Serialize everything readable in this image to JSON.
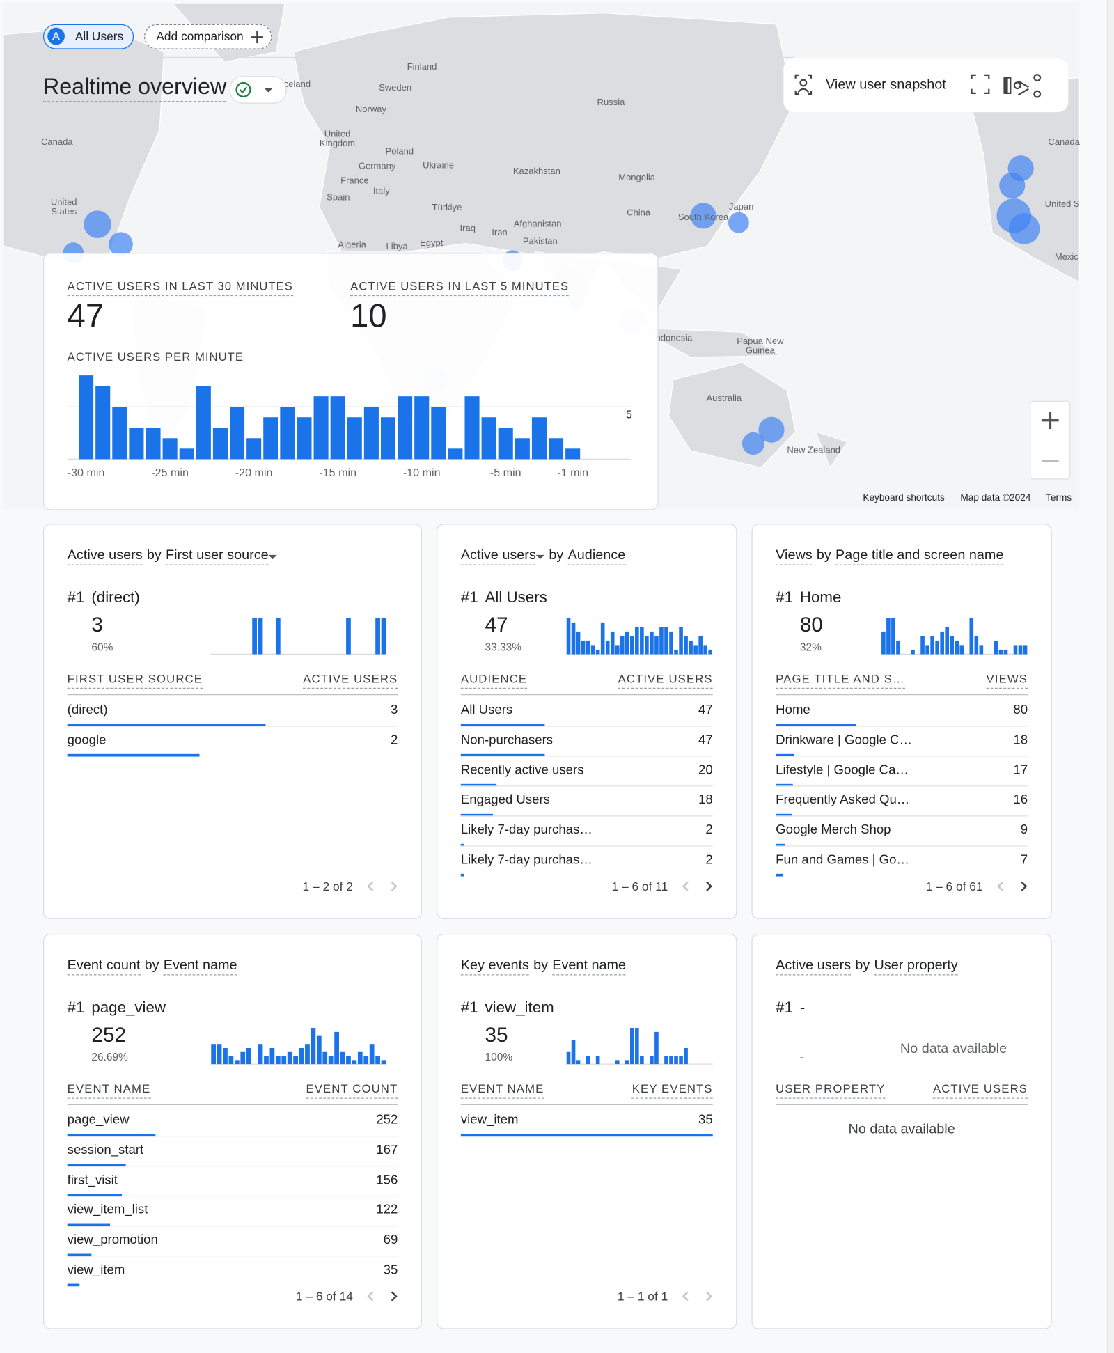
{
  "header": {
    "segment_icon": "A",
    "segment_chip": "All Users",
    "add_comparison": "Add comparison",
    "title": "Realtime overview",
    "snapshot": "View user snapshot"
  },
  "map": {
    "labels": [
      "Finland",
      "Sweden",
      "Norway",
      "Iceland",
      "Russia",
      "United Kingdom",
      "Poland",
      "Germany",
      "Ukraine",
      "France",
      "Kazakhstan",
      "Mongolia",
      "Spain",
      "Italy",
      "Türkiye",
      "China",
      "Japan",
      "South Korea",
      "Iraq",
      "Iran",
      "Afghanistan",
      "Pakistan",
      "Algeria",
      "Libya",
      "Egypt",
      "Canada",
      "United States",
      "Canada",
      "United S",
      "Mexic",
      "ndonesia",
      "Papua New Guinea",
      "Australia",
      "New Zealand"
    ],
    "keyboard_shortcuts": "Keyboard shortcuts",
    "map_data": "Map data ©2024",
    "terms": "Terms"
  },
  "realtime": {
    "metrics": [
      {
        "label": "ACTIVE USERS IN LAST 30 MINUTES",
        "value": 47
      },
      {
        "label": "ACTIVE USERS IN LAST 5 MINUTES",
        "value": 10
      }
    ],
    "chart_data": {
      "type": "bar",
      "title": "ACTIVE USERS PER MINUTE",
      "categories": [
        "-30 min",
        null,
        null,
        null,
        null,
        "-25 min",
        null,
        null,
        null,
        null,
        "-20 min",
        null,
        null,
        null,
        null,
        "-15 min",
        null,
        null,
        null,
        null,
        "-10 min",
        null,
        null,
        null,
        null,
        "-5 min",
        null,
        null,
        null,
        "-1 min"
      ],
      "values": [
        8,
        7,
        5,
        3,
        3,
        2,
        1,
        7,
        3,
        5,
        2,
        4,
        5,
        4,
        6,
        6,
        4,
        5,
        4,
        6,
        6,
        5,
        1,
        6,
        4,
        3,
        2,
        4,
        2,
        1
      ],
      "color": "#1a73e8",
      "ylim": [
        0,
        8
      ],
      "yticks": [
        5
      ],
      "grid": true
    }
  },
  "cards": [
    {
      "title": [
        "Active users",
        "by",
        "First user source"
      ],
      "rank": "#1",
      "top_name": "(direct)",
      "top_value": 3,
      "share": 60,
      "share_label": "60%",
      "spark": [
        0,
        0,
        0,
        0,
        0,
        0,
        0,
        1,
        1,
        0,
        0,
        1,
        0,
        0,
        0,
        0,
        0,
        0,
        0,
        0,
        0,
        0,
        0,
        1,
        0,
        0,
        0,
        0,
        1,
        1
      ],
      "columns": [
        "FIRST USER SOURCE",
        "ACTIVE USERS"
      ],
      "rows": [
        {
          "name": "(direct)",
          "value": 3
        },
        {
          "name": "google",
          "value": 2
        }
      ],
      "pagination": "1 – 2 of 2"
    },
    {
      "title": [
        "Active users",
        "by",
        "Audience"
      ],
      "rank": "#1",
      "top_name": "All Users",
      "top_value": 47,
      "share": 33.33,
      "share_label": "33.33%",
      "spark": [
        8,
        7,
        5,
        3,
        3,
        2,
        1,
        7,
        3,
        5,
        2,
        4,
        5,
        4,
        6,
        6,
        4,
        5,
        4,
        6,
        6,
        5,
        1,
        6,
        4,
        3,
        2,
        4,
        2,
        1
      ],
      "columns": [
        "AUDIENCE",
        "ACTIVE USERS"
      ],
      "rows": [
        {
          "name": "All Users",
          "value": 47
        },
        {
          "name": "Non-purchasers",
          "value": 47
        },
        {
          "name": "Recently active users",
          "value": 20
        },
        {
          "name": "Engaged Users",
          "value": 18
        },
        {
          "name": "Likely 7-day purchas…",
          "value": 2
        },
        {
          "name": "Likely 7-day purchas…",
          "value": 2
        }
      ],
      "pagination": "1 – 6 of 11"
    },
    {
      "title": [
        "Views",
        "by",
        "Page title and screen name"
      ],
      "rank": "#1",
      "top_name": "Home",
      "top_value": 80,
      "share": 32,
      "share_label": "32%",
      "spark": [
        5,
        8,
        8,
        3,
        0,
        0,
        1,
        0,
        4,
        2,
        4,
        3,
        5,
        6,
        4,
        3,
        2,
        0,
        8,
        4,
        2,
        0,
        0,
        3,
        1,
        1,
        0,
        2,
        2,
        2
      ],
      "columns": [
        "PAGE TITLE AND S…",
        "VIEWS"
      ],
      "rows": [
        {
          "name": "Home",
          "value": 80
        },
        {
          "name": "Drinkware | Google C…",
          "value": 18
        },
        {
          "name": "Lifestyle | Google Ca…",
          "value": 17
        },
        {
          "name": "Frequently Asked Qu…",
          "value": 16
        },
        {
          "name": "Google Merch Shop",
          "value": 9
        },
        {
          "name": "Fun and Games | Go…",
          "value": 7
        }
      ],
      "pagination": "1 – 6 of 61"
    },
    {
      "title": [
        "Event count",
        "by",
        "Event name"
      ],
      "rank": "#1",
      "top_name": "page_view",
      "top_value": 252,
      "share": 26.69,
      "share_label": "26.69%",
      "spark": [
        5,
        5,
        4,
        2,
        1,
        3,
        4,
        0,
        5,
        2,
        4,
        2,
        2,
        3,
        2,
        4,
        5,
        9,
        7,
        3,
        2,
        8,
        3,
        2,
        1,
        3,
        2,
        5,
        2,
        1
      ],
      "columns": [
        "EVENT NAME",
        "EVENT COUNT"
      ],
      "rows": [
        {
          "name": "page_view",
          "value": 252
        },
        {
          "name": "session_start",
          "value": 167
        },
        {
          "name": "first_visit",
          "value": 156
        },
        {
          "name": "view_item_list",
          "value": 122
        },
        {
          "name": "view_promotion",
          "value": 69
        },
        {
          "name": "view_item",
          "value": 35
        }
      ],
      "pagination": "1 – 6 of 14"
    },
    {
      "title": [
        "Key events",
        "by",
        "Event name"
      ],
      "rank": "#1",
      "top_name": "view_item",
      "top_value": 35,
      "share": 100,
      "share_label": "100%",
      "spark": [
        3,
        6,
        1,
        0,
        2,
        0,
        2,
        0,
        0,
        0,
        1,
        0,
        1,
        9,
        9,
        2,
        0,
        2,
        8,
        0,
        2,
        2,
        2,
        2,
        4,
        0,
        0,
        0,
        0,
        0
      ],
      "columns": [
        "EVENT NAME",
        "KEY EVENTS"
      ],
      "rows": [
        {
          "name": "view_item",
          "value": 35
        }
      ],
      "pagination": "1 – 1 of 1"
    },
    {
      "title": [
        "Active users",
        "by",
        "User property"
      ],
      "rank": "#1",
      "top_name": "-",
      "share_label": "-",
      "no_data": "No data available",
      "columns": [
        "USER PROPERTY",
        "ACTIVE USERS"
      ],
      "table_no_data": "No data available"
    }
  ]
}
